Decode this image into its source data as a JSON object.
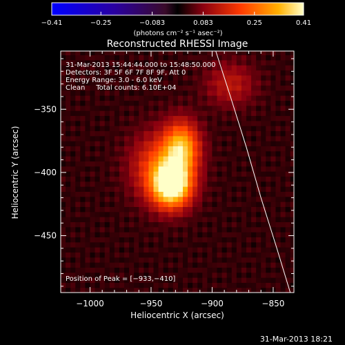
{
  "chart_data": {
    "type": "heatmap",
    "title": "Reconstructed RHESSI Image",
    "xlabel": "Heliocentric X (arcsec)",
    "ylabel": "Heliocentric Y (arcsec)",
    "xlim": [
      -1024,
      -833
    ],
    "ylim": [
      -495,
      -304
    ],
    "x_ticks": [
      -1000,
      -950,
      -900,
      -850
    ],
    "y_ticks": [
      -350,
      -400,
      -450
    ],
    "x_tick_labels": [
      "−1000",
      "−950",
      "−900",
      "−850"
    ],
    "y_tick_labels": [
      "−350",
      "−400",
      "−450"
    ],
    "colorbar": {
      "min": -0.41,
      "max": 0.41,
      "tick_values": [
        -0.41,
        -0.25,
        -0.083,
        0.083,
        0.25,
        0.41
      ],
      "tick_labels": [
        "−0.41",
        "−0.25",
        "−0.083",
        "0.083",
        "0.25",
        "0.41"
      ],
      "units": "(photons cm⁻² s⁻¹ asec⁻²)"
    },
    "annotations": [
      "31-Mar-2013 15:44:44.000 to 15:48:50.000",
      "Detectors: 3F 5F 6F 7F 8F 9F, Att 0",
      "Energy Range: 3.0 - 6.0 keV",
      "Clean     Total counts: 6.10E+04"
    ],
    "peak_label": "Position of Peak = [−933,−410]",
    "peak": [
      -933,
      -410
    ],
    "sources": [
      {
        "x": -933,
        "y": -410,
        "amp": 0.41,
        "sx": 11,
        "sy": 12
      },
      {
        "x": -925,
        "y": -380,
        "amp": 0.28,
        "sx": 10,
        "sy": 14
      },
      {
        "x": -943,
        "y": -395,
        "amp": 0.18,
        "sx": 16,
        "sy": 18
      },
      {
        "x": -885,
        "y": -330,
        "amp": 0.1,
        "sx": 14,
        "sy": 12
      }
    ],
    "limb_curve": [
      [
        -897,
        -304
      ],
      [
        -885,
        -340
      ],
      [
        -872,
        -380
      ],
      [
        -860,
        -420
      ],
      [
        -847,
        -460
      ],
      [
        -836,
        -495
      ]
    ]
  },
  "footer": "31-Mar-2013 18:21"
}
